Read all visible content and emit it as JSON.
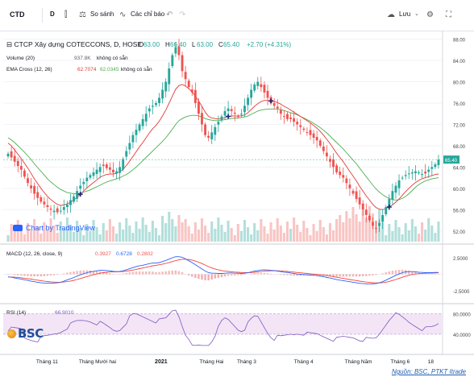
{
  "toolbar": {
    "symbol": "CTD",
    "interval": "D",
    "compare_label": "So sánh",
    "indicators_label": "Các chỉ báo",
    "save_label": "Lưu"
  },
  "legend": {
    "title": "CTCP Xây dựng COTECCONS, D, HOSE",
    "o_label": "O",
    "o": "63.00",
    "h_label": "H",
    "h": "66.40",
    "l_label": "L",
    "l": "63.00",
    "c_label": "C",
    "c": "65.40",
    "change": "+2.70 (+4.31%)",
    "volume_label": "Volume (20)",
    "volume_value": "937.8K",
    "na": "không có sẵn",
    "ema_label": "EMA Cross (12, 26)",
    "ema1": "62.7074",
    "ema2": "62.0345",
    "macd_label": "MACD (12, 26, close, 9)",
    "macd1": "0.3927",
    "macd2": "0.6728",
    "macd3": "0.2802",
    "rsi_label": "RSI (14)",
    "rsi_value": "66.9010"
  },
  "watermark": {
    "tradingview": "Chart by TradingView",
    "bsc": "BSC"
  },
  "source": "Nguồn: BSC, PTKT Itrade",
  "colors": {
    "up": "#26a69a",
    "down": "#ef5350",
    "ema_fast": "#e53935",
    "ema_slow": "#4caf50",
    "macd": "#2962ff",
    "signal": "#f44336",
    "rsi": "#7e57c2",
    "rsi_band": "#f3e5f5",
    "last_price_bg": "#26a69a"
  },
  "chart_data": {
    "type": "candlestick",
    "price_axis": {
      "ticks": [
        "88.00",
        "84.00",
        "80.00",
        "76.00",
        "72.00",
        "68.00",
        "64.00",
        "60.00",
        "56.00",
        "52.00"
      ],
      "ylim": [
        50,
        89
      ],
      "last_price": "65.40"
    },
    "macd_axis": {
      "ticks": [
        "2.5000",
        "-2.5000"
      ]
    },
    "rsi_axis": {
      "ticks": [
        "80.0000",
        "40.0000"
      ]
    },
    "x_ticks": [
      "Tháng 11",
      "Tháng Mười hai",
      "2021",
      "Tháng Hai",
      "Tháng 3",
      "Tháng 4",
      "Tháng Năm",
      "Tháng 6",
      "18"
    ],
    "close_series_approx": [
      66.5,
      65.8,
      65.0,
      64.2,
      63.5,
      62.2,
      61.0,
      60.0,
      59.0,
      58.2,
      57.5,
      57.0,
      56.5,
      56.0,
      55.8,
      55.5,
      55.8,
      56.5,
      57.0,
      57.8,
      58.5,
      59.5,
      60.5,
      61.2,
      62.0,
      62.5,
      63.0,
      63.5,
      64.0,
      64.2,
      63.8,
      63.5,
      63.0,
      63.2,
      64.0,
      65.5,
      67.0,
      68.5,
      70.0,
      71.0,
      72.0,
      73.0,
      74.0,
      75.0,
      75.5,
      76.0,
      77.0,
      78.5,
      80.0,
      82.5,
      85.0,
      86.5,
      85.0,
      82.0,
      80.5,
      79.0,
      78.0,
      76.0,
      74.0,
      72.0,
      70.0,
      69.5,
      70.5,
      71.5,
      72.5,
      73.5,
      74.5,
      75.0,
      74.5,
      74.0,
      73.5,
      74.0,
      75.5,
      77.0,
      78.5,
      79.5,
      80.0,
      79.0,
      78.0,
      77.0,
      76.0,
      75.5,
      75.0,
      74.0,
      73.5,
      73.0,
      73.0,
      72.5,
      72.0,
      71.5,
      71.0,
      70.5,
      70.0,
      69.5,
      69.0,
      68.0,
      67.0,
      66.0,
      65.0,
      64.0,
      63.0,
      62.5,
      62.0,
      61.0,
      60.0,
      59.0,
      58.0,
      57.0,
      56.0,
      55.0,
      54.0,
      53.0,
      52.5,
      53.5,
      55.0,
      56.5,
      58.0,
      59.5,
      60.5,
      61.5,
      62.0,
      62.5,
      62.8,
      63.0,
      63.2,
      63.0,
      62.7,
      62.8,
      63.5,
      64.0,
      64.5,
      65.4
    ],
    "ema_fast_approx": [
      68.5,
      68.0,
      67.2,
      66.4,
      65.6,
      64.7,
      63.8,
      62.8,
      61.8,
      60.9,
      60.0,
      59.2,
      58.5,
      57.9,
      57.4,
      57.0,
      56.8,
      56.9,
      57.1,
      57.4,
      57.8,
      58.3,
      58.9,
      59.5,
      60.1,
      60.6,
      61.1,
      61.6,
      62.1,
      62.4,
      62.6,
      62.7,
      62.7,
      62.8,
      63.1,
      63.6,
      64.3,
      65.1,
      66.0,
      66.9,
      67.8,
      68.6,
      69.5,
      70.4,
      71.2,
      71.8,
      72.6,
      73.6,
      74.7,
      76.0,
      77.3,
      78.6,
      79.3,
      79.5,
      79.2,
      78.7,
      78.1,
      77.3,
      76.4,
      75.4,
      74.3,
      73.5,
      73.2,
      73.1,
      73.0,
      73.1,
      73.3,
      73.5,
      73.6,
      73.6,
      73.6,
      73.6,
      73.8,
      74.2,
      74.8,
      75.4,
      75.9,
      76.3,
      76.5,
      76.5,
      76.4,
      76.3,
      76.1,
      75.8,
      75.4,
      75.1,
      74.7,
      74.3,
      73.9,
      73.5,
      73.1,
      72.7,
      72.3,
      71.8,
      71.3,
      70.7,
      70.0,
      69.2,
      68.4,
      67.5,
      66.6,
      65.8,
      65.0,
      64.1,
      63.2,
      62.3,
      61.4,
      60.4,
      59.5,
      58.6,
      57.8,
      57.0,
      56.4,
      56.1,
      56.0,
      56.2,
      56.5,
      56.9,
      57.4,
      58.0,
      58.7,
      59.4,
      60.0,
      60.6,
      61.1,
      61.5,
      61.8,
      62.0,
      62.2,
      62.4,
      62.6,
      62.7
    ],
    "ema_slow_approx": [
      69.5,
      69.1,
      68.6,
      68.0,
      67.4,
      66.8,
      66.1,
      65.4,
      64.6,
      63.9,
      63.2,
      62.5,
      61.8,
      61.2,
      60.7,
      60.2,
      59.8,
      59.5,
      59.2,
      59.1,
      59.0,
      59.0,
      59.1,
      59.3,
      59.5,
      59.7,
      60.0,
      60.3,
      60.6,
      60.9,
      61.2,
      61.4,
      61.6,
      61.8,
      62.0,
      62.3,
      62.6,
      63.0,
      63.5,
      64.0,
      64.6,
      65.2,
      65.8,
      66.4,
      67.0,
      67.6,
      68.2,
      68.8,
      69.5,
      70.3,
      71.1,
      72.0,
      72.7,
      73.1,
      73.4,
      73.6,
      73.7,
      73.7,
      73.6,
      73.4,
      73.1,
      72.9,
      72.8,
      72.7,
      72.7,
      72.8,
      72.9,
      73.0,
      73.1,
      73.2,
      73.2,
      73.3,
      73.4,
      73.6,
      73.9,
      74.2,
      74.5,
      74.7,
      74.8,
      74.9,
      74.9,
      74.9,
      74.9,
      74.8,
      74.6,
      74.4,
      74.2,
      74.0,
      73.8,
      73.5,
      73.2,
      72.9,
      72.6,
      72.2,
      71.8,
      71.4,
      70.9,
      70.4,
      69.8,
      69.2,
      68.6,
      68.0,
      67.4,
      66.7,
      66.0,
      65.3,
      64.6,
      63.8,
      63.0,
      62.2,
      61.4,
      60.6,
      59.9,
      59.3,
      58.8,
      58.4,
      58.1,
      57.9,
      57.8,
      57.9,
      58.1,
      58.5,
      59.0,
      59.6,
      60.2,
      60.7,
      61.1,
      61.4,
      61.6,
      61.8,
      61.9,
      62.0
    ]
  }
}
